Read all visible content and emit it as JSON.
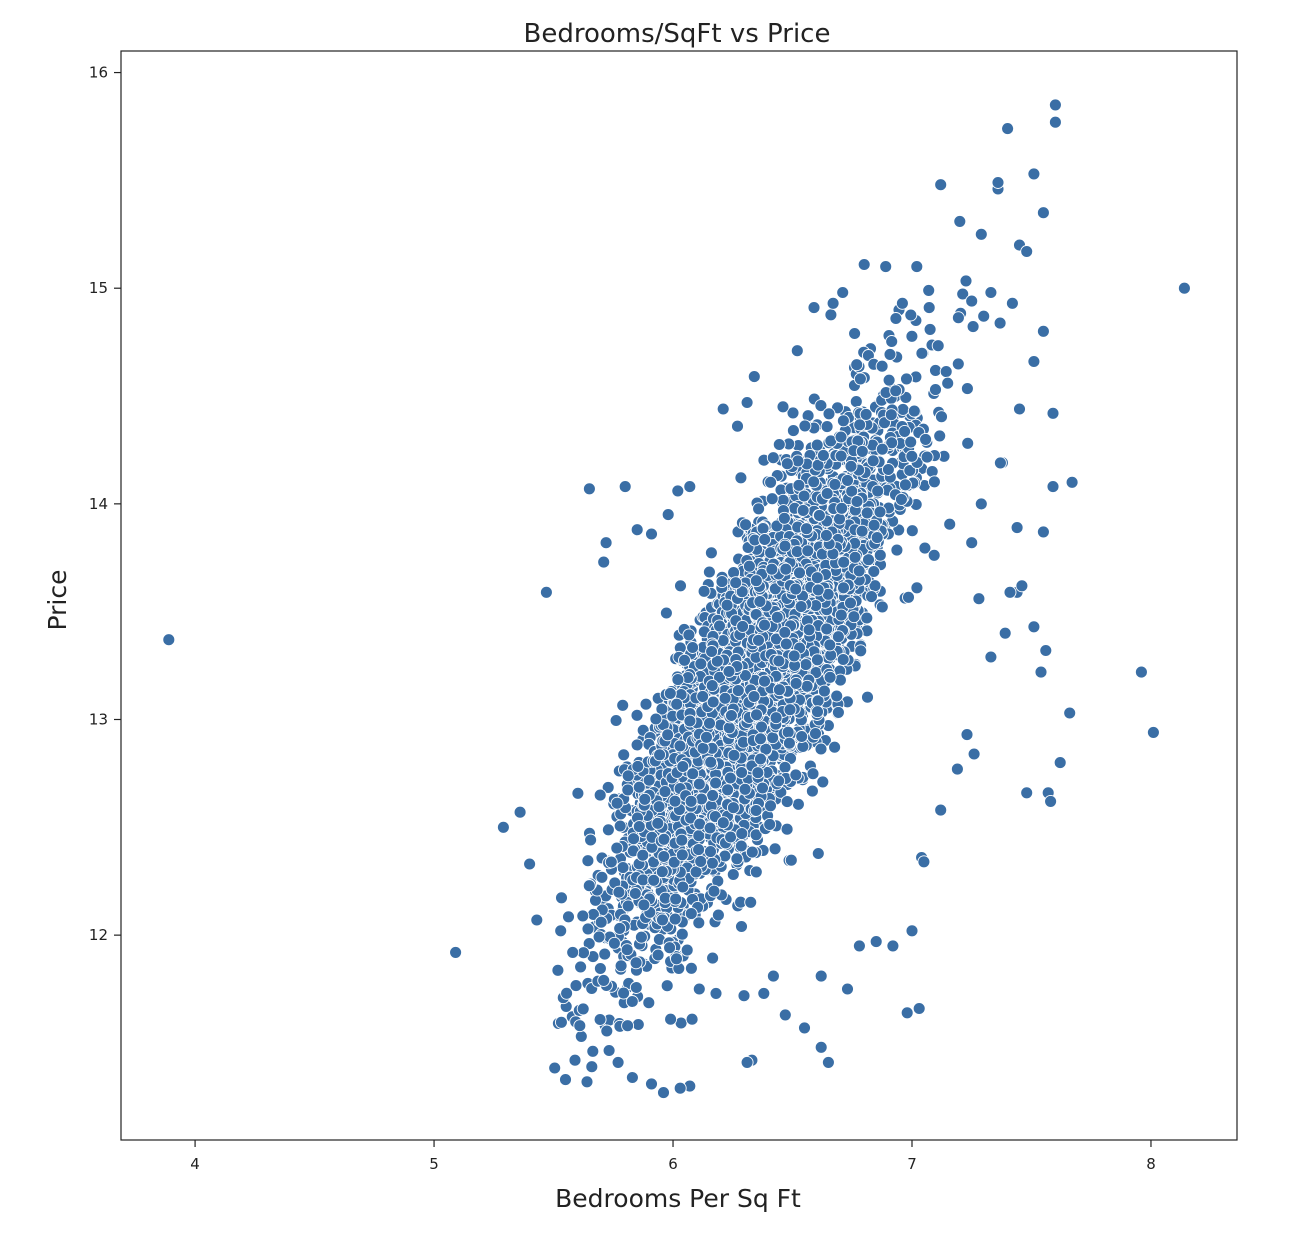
{
  "chart_data": {
    "type": "scatter",
    "title": "Bedrooms/SqFt vs Price",
    "xlabel": "Bedrooms Per Sq Ft",
    "ylabel": "Price",
    "xlim": [
      3.69,
      8.36
    ],
    "ylim": [
      11.05,
      16.1
    ],
    "x_ticks": [
      4,
      5,
      6,
      7,
      8
    ],
    "y_ticks": [
      12,
      13,
      14,
      15,
      16
    ],
    "x_tick_labels": [
      "4",
      "5",
      "6",
      "7",
      "8"
    ],
    "y_tick_labels": [
      "12",
      "13",
      "14",
      "15",
      "16"
    ],
    "grid": false,
    "legend": "none",
    "marker_color": "#3a6ea5",
    "marker_edge_color": "#ffffff",
    "points": [
      [
        3.89,
        13.37
      ],
      [
        5.09,
        11.92
      ],
      [
        5.29,
        12.5
      ],
      [
        5.47,
        13.59
      ],
      [
        5.36,
        12.57
      ],
      [
        5.43,
        12.07
      ],
      [
        5.4,
        12.33
      ],
      [
        5.55,
        11.33
      ],
      [
        5.64,
        11.32
      ],
      [
        5.8,
        14.08
      ],
      [
        5.72,
        13.82
      ],
      [
        5.96,
        11.27
      ],
      [
        6.07,
        11.3
      ],
      [
        6.34,
        14.59
      ],
      [
        6.52,
        14.71
      ],
      [
        6.8,
        15.11
      ],
      [
        6.89,
        15.1
      ],
      [
        7.02,
        15.1
      ],
      [
        7.12,
        15.48
      ],
      [
        7.2,
        15.31
      ],
      [
        7.29,
        15.25
      ],
      [
        7.36,
        15.46
      ],
      [
        7.36,
        15.49
      ],
      [
        7.4,
        15.74
      ],
      [
        7.51,
        15.53
      ],
      [
        7.55,
        15.35
      ],
      [
        7.6,
        15.85
      ],
      [
        7.6,
        15.77
      ],
      [
        7.45,
        15.2
      ],
      [
        7.48,
        15.17
      ],
      [
        7.55,
        14.8
      ],
      [
        7.59,
        14.42
      ],
      [
        7.67,
        14.1
      ],
      [
        7.55,
        13.87
      ],
      [
        7.59,
        14.08
      ],
      [
        7.66,
        13.03
      ],
      [
        7.62,
        12.8
      ],
      [
        7.57,
        12.66
      ],
      [
        7.58,
        12.62
      ],
      [
        7.48,
        12.66
      ],
      [
        7.96,
        13.22
      ],
      [
        8.01,
        12.94
      ],
      [
        8.14,
        15.0
      ],
      [
        6.98,
        11.64
      ],
      [
        7.03,
        11.66
      ],
      [
        7.0,
        12.02
      ],
      [
        6.92,
        11.95
      ],
      [
        6.62,
        11.48
      ],
      [
        6.65,
        11.41
      ],
      [
        6.55,
        11.57
      ],
      [
        6.47,
        11.63
      ],
      [
        6.33,
        11.42
      ],
      [
        6.31,
        11.41
      ],
      [
        6.03,
        11.29
      ],
      [
        5.91,
        11.31
      ],
      [
        5.83,
        11.34
      ],
      [
        5.77,
        11.41
      ],
      [
        5.66,
        11.39
      ],
      [
        5.61,
        11.58
      ],
      [
        5.59,
        11.42
      ],
      [
        7.28,
        13.56
      ],
      [
        7.33,
        13.29
      ],
      [
        7.39,
        13.4
      ],
      [
        7.44,
        13.59
      ],
      [
        7.51,
        13.43
      ],
      [
        7.54,
        13.22
      ],
      [
        7.56,
        13.32
      ],
      [
        7.19,
        12.77
      ],
      [
        7.23,
        12.93
      ],
      [
        7.26,
        12.84
      ],
      [
        7.12,
        12.58
      ],
      [
        7.04,
        12.36
      ],
      [
        7.05,
        12.34
      ],
      [
        6.85,
        11.97
      ],
      [
        6.78,
        11.95
      ],
      [
        6.73,
        11.75
      ],
      [
        6.62,
        11.81
      ],
      [
        6.42,
        11.81
      ],
      [
        6.38,
        11.73
      ],
      [
        6.18,
        11.73
      ],
      [
        6.11,
        11.75
      ],
      [
        6.08,
        11.61
      ],
      [
        5.99,
        11.61
      ],
      [
        5.81,
        11.58
      ],
      [
        5.71,
        11.79
      ],
      [
        5.53,
        12.02
      ],
      [
        5.58,
        11.92
      ],
      [
        5.65,
        14.07
      ],
      [
        5.71,
        13.73
      ],
      [
        5.85,
        13.88
      ],
      [
        5.91,
        13.86
      ],
      [
        5.98,
        13.95
      ],
      [
        6.07,
        14.08
      ],
      [
        6.02,
        14.06
      ],
      [
        6.21,
        14.44
      ],
      [
        6.27,
        14.36
      ],
      [
        6.31,
        14.47
      ],
      [
        6.46,
        14.45
      ],
      [
        6.59,
        14.91
      ],
      [
        6.67,
        14.93
      ],
      [
        6.71,
        14.98
      ],
      [
        6.76,
        14.79
      ],
      [
        6.96,
        14.93
      ],
      [
        7.07,
        14.99
      ],
      [
        7.25,
        14.94
      ],
      [
        7.3,
        14.87
      ],
      [
        7.33,
        14.98
      ],
      [
        7.42,
        14.93
      ],
      [
        7.51,
        14.66
      ],
      [
        7.45,
        14.44
      ],
      [
        7.37,
        14.19
      ],
      [
        7.29,
        14.0
      ],
      [
        7.25,
        13.82
      ],
      [
        7.44,
        13.89
      ],
      [
        7.41,
        13.59
      ],
      [
        7.46,
        13.62
      ]
    ]
  }
}
